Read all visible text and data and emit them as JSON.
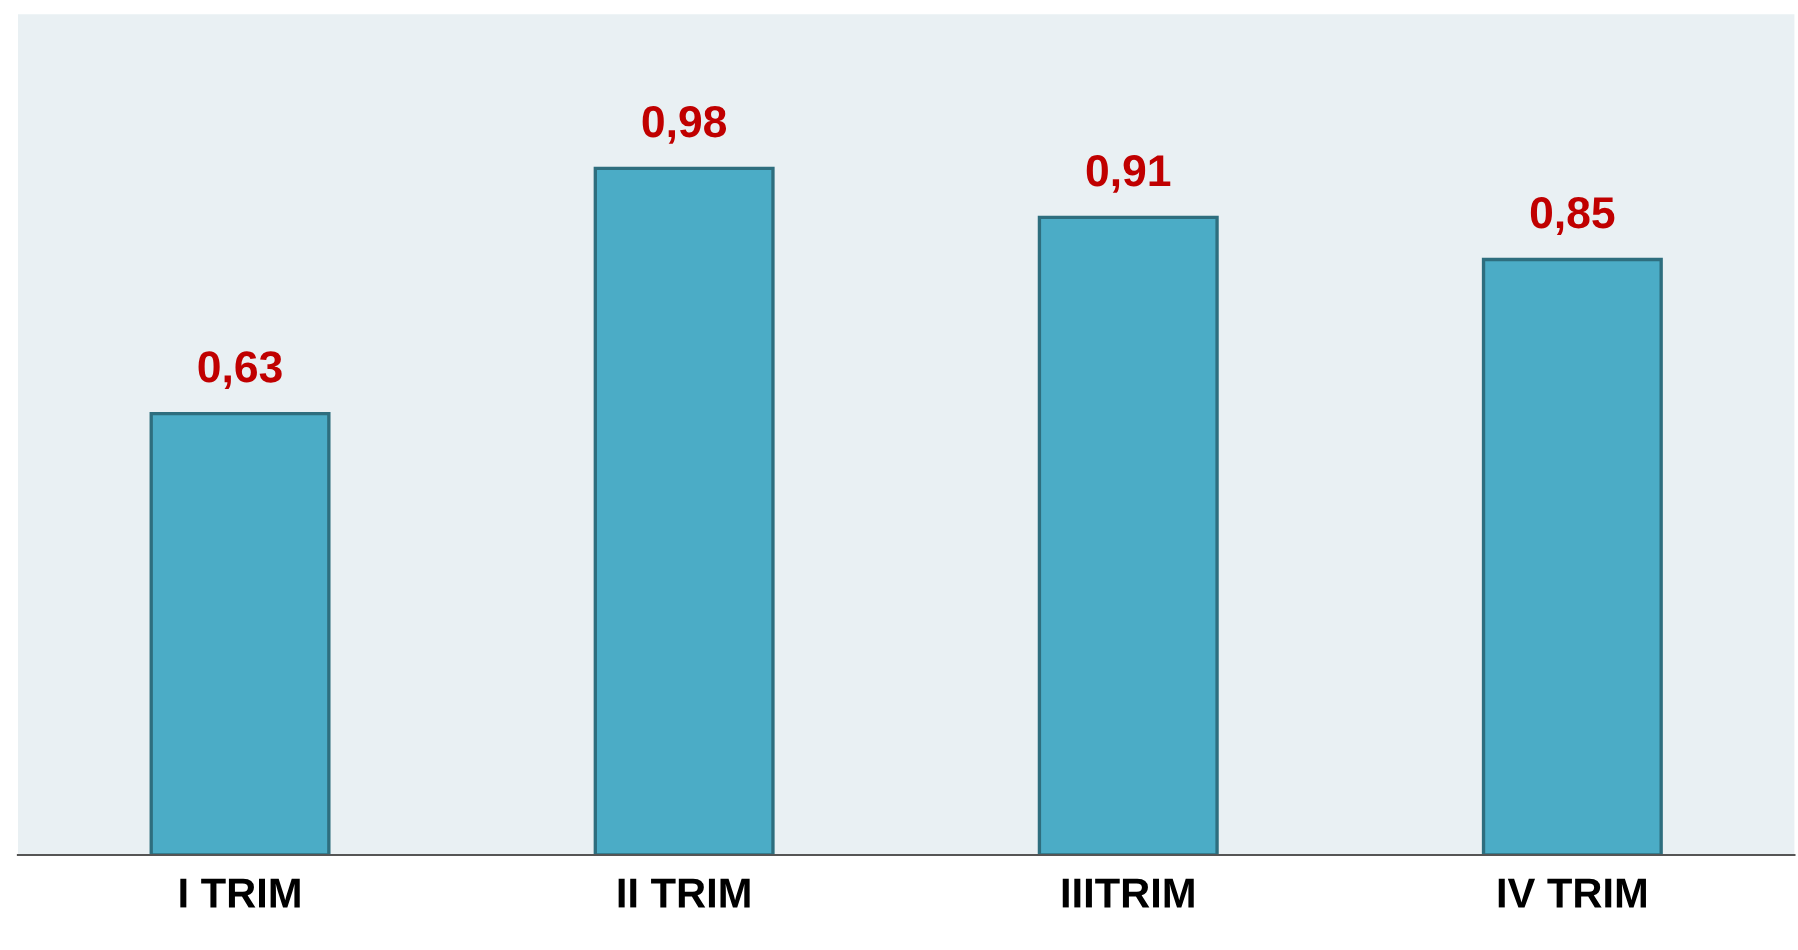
{
  "chart_data": {
    "type": "bar",
    "categories": [
      "I TRIM",
      "II TRIM",
      "IIITRIM",
      "IV TRIM"
    ],
    "values": [
      0.63,
      0.98,
      0.91,
      0.85
    ],
    "value_labels": [
      "0,63",
      "0,98",
      "0,91",
      "0,85"
    ],
    "color": "#4bacc6",
    "ylim": [
      0,
      1.2
    ],
    "grid": false,
    "legend": false
  }
}
